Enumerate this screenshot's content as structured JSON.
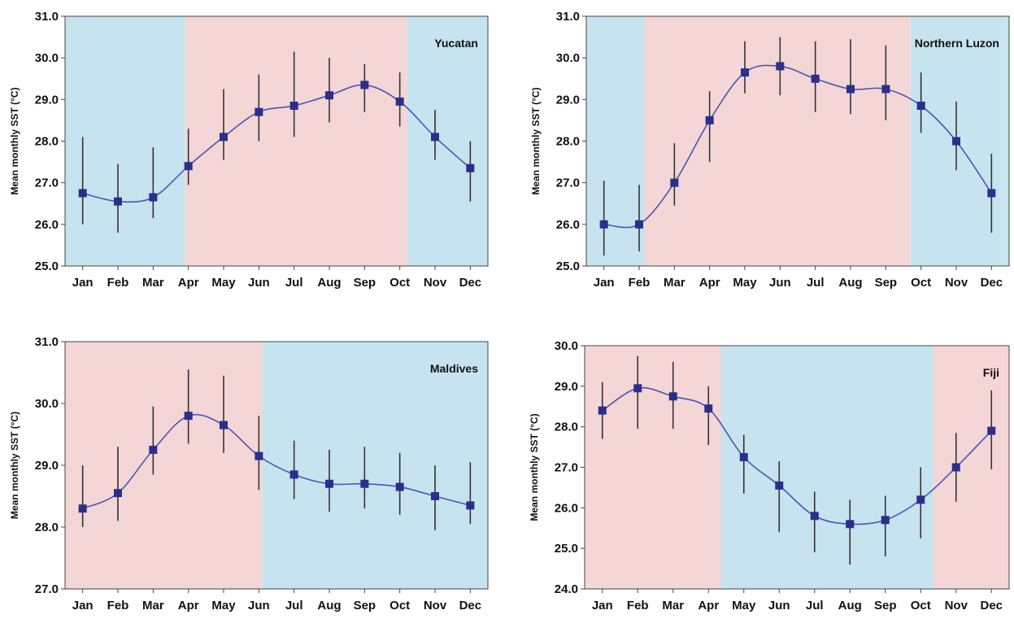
{
  "colors": {
    "warm_season": "#f4d6d6",
    "cool_season": "#c6e4f0",
    "series": "#4a55b8",
    "marker": "#2a2f8c",
    "errorbar": "#333333",
    "axis": "#444444"
  },
  "chart_data": [
    {
      "type": "line",
      "title": "Yucatan",
      "ylabel": "Mean monthly SST (°C)",
      "categories": [
        "Jan",
        "Feb",
        "Mar",
        "Apr",
        "May",
        "Jun",
        "Jul",
        "Aug",
        "Sep",
        "Oct",
        "Nov",
        "Dec"
      ],
      "ylim": [
        25.0,
        31.0
      ],
      "yticks": [
        "25.0",
        "26.0",
        "27.0",
        "28.0",
        "29.0",
        "30.0",
        "31.0"
      ],
      "values": [
        26.75,
        26.55,
        26.65,
        27.4,
        28.1,
        28.7,
        28.85,
        29.1,
        29.35,
        28.95,
        28.1,
        27.35
      ],
      "error_low": [
        26.0,
        25.8,
        26.15,
        26.95,
        27.55,
        28.0,
        28.1,
        28.45,
        28.7,
        28.35,
        27.55,
        26.55
      ],
      "error_high": [
        28.1,
        27.45,
        27.85,
        28.3,
        29.25,
        29.6,
        30.15,
        30.0,
        29.85,
        29.65,
        28.75,
        28.0
      ],
      "shading": [
        {
          "season": "cool",
          "from": 0.5,
          "to": 3.9
        },
        {
          "season": "warm",
          "from": 3.9,
          "to": 10.2
        },
        {
          "season": "cool",
          "from": 10.2,
          "to": 12.5
        }
      ],
      "grid": false,
      "legend": "none"
    },
    {
      "type": "line",
      "title": "Northern Luzon",
      "ylabel": "Mean monthly SST (°C)",
      "categories": [
        "Jan",
        "Feb",
        "Mar",
        "Apr",
        "May",
        "Jun",
        "Jul",
        "Aug",
        "Sep",
        "Oct",
        "Nov",
        "Dec"
      ],
      "ylim": [
        25.0,
        31.0
      ],
      "yticks": [
        "25.0",
        "26.0",
        "27.0",
        "28.0",
        "29.0",
        "30.0",
        "31.0"
      ],
      "values": [
        26.0,
        26.0,
        27.0,
        28.5,
        29.65,
        29.8,
        29.5,
        29.25,
        29.25,
        28.85,
        28.0,
        26.75
      ],
      "error_low": [
        25.25,
        25.35,
        26.45,
        27.5,
        29.15,
        29.1,
        28.7,
        28.65,
        28.5,
        28.2,
        27.3,
        25.8
      ],
      "error_high": [
        27.05,
        26.95,
        27.95,
        29.2,
        30.4,
        30.5,
        30.4,
        30.45,
        30.3,
        29.65,
        28.95,
        27.7
      ],
      "shading": [
        {
          "season": "cool",
          "from": 0.5,
          "to": 2.15
        },
        {
          "season": "warm",
          "from": 2.15,
          "to": 9.7
        },
        {
          "season": "cool",
          "from": 9.7,
          "to": 12.5
        }
      ],
      "grid": false,
      "legend": "none"
    },
    {
      "type": "line",
      "title": "Maldives",
      "ylabel": "Mean monthly SST (°C)",
      "categories": [
        "Jan",
        "Feb",
        "Mar",
        "Apr",
        "May",
        "Jun",
        "Jul",
        "Aug",
        "Sep",
        "Oct",
        "Nov",
        "Dec"
      ],
      "ylim": [
        27.0,
        31.0
      ],
      "yticks": [
        "27.0",
        "28.0",
        "29.0",
        "30.0",
        "31.0"
      ],
      "values": [
        28.3,
        28.55,
        29.25,
        29.8,
        29.65,
        29.15,
        28.85,
        28.7,
        28.7,
        28.65,
        28.5,
        28.35
      ],
      "error_low": [
        28.0,
        28.1,
        28.85,
        29.35,
        29.2,
        28.6,
        28.45,
        28.25,
        28.3,
        28.2,
        27.95,
        28.05
      ],
      "error_high": [
        29.0,
        29.3,
        29.95,
        30.55,
        30.45,
        29.8,
        29.4,
        29.25,
        29.3,
        29.2,
        29.0,
        29.05
      ],
      "shading": [
        {
          "season": "warm",
          "from": 0.5,
          "to": 6.1
        },
        {
          "season": "cool",
          "from": 6.1,
          "to": 12.5
        }
      ],
      "grid": false,
      "legend": "none"
    },
    {
      "type": "line",
      "title": "Fiji",
      "ylabel": "Mean monthly SST (°C)",
      "categories": [
        "Jan",
        "Feb",
        "Mar",
        "Apr",
        "May",
        "Jun",
        "Jul",
        "Aug",
        "Sep",
        "Oct",
        "Nov",
        "Dec"
      ],
      "ylim": [
        24.0,
        30.0
      ],
      "yticks": [
        "24.0",
        "25.0",
        "26.0",
        "27.0",
        "28.0",
        "29.0",
        "30.0"
      ],
      "values": [
        28.4,
        28.95,
        28.75,
        28.45,
        27.25,
        26.55,
        25.8,
        25.6,
        25.7,
        26.2,
        27.0,
        27.9
      ],
      "error_low": [
        27.7,
        27.95,
        27.95,
        27.55,
        26.35,
        25.4,
        24.9,
        24.6,
        24.8,
        25.25,
        26.15,
        26.95
      ],
      "error_high": [
        29.1,
        29.75,
        29.6,
        29.0,
        27.8,
        27.15,
        26.4,
        26.2,
        26.3,
        27.0,
        27.85,
        28.9
      ],
      "shading": [
        {
          "season": "warm",
          "from": 0.5,
          "to": 4.35
        },
        {
          "season": "cool",
          "from": 4.35,
          "to": 10.35
        },
        {
          "season": "warm",
          "from": 10.35,
          "to": 12.5
        }
      ],
      "grid": false,
      "legend": "none"
    }
  ]
}
